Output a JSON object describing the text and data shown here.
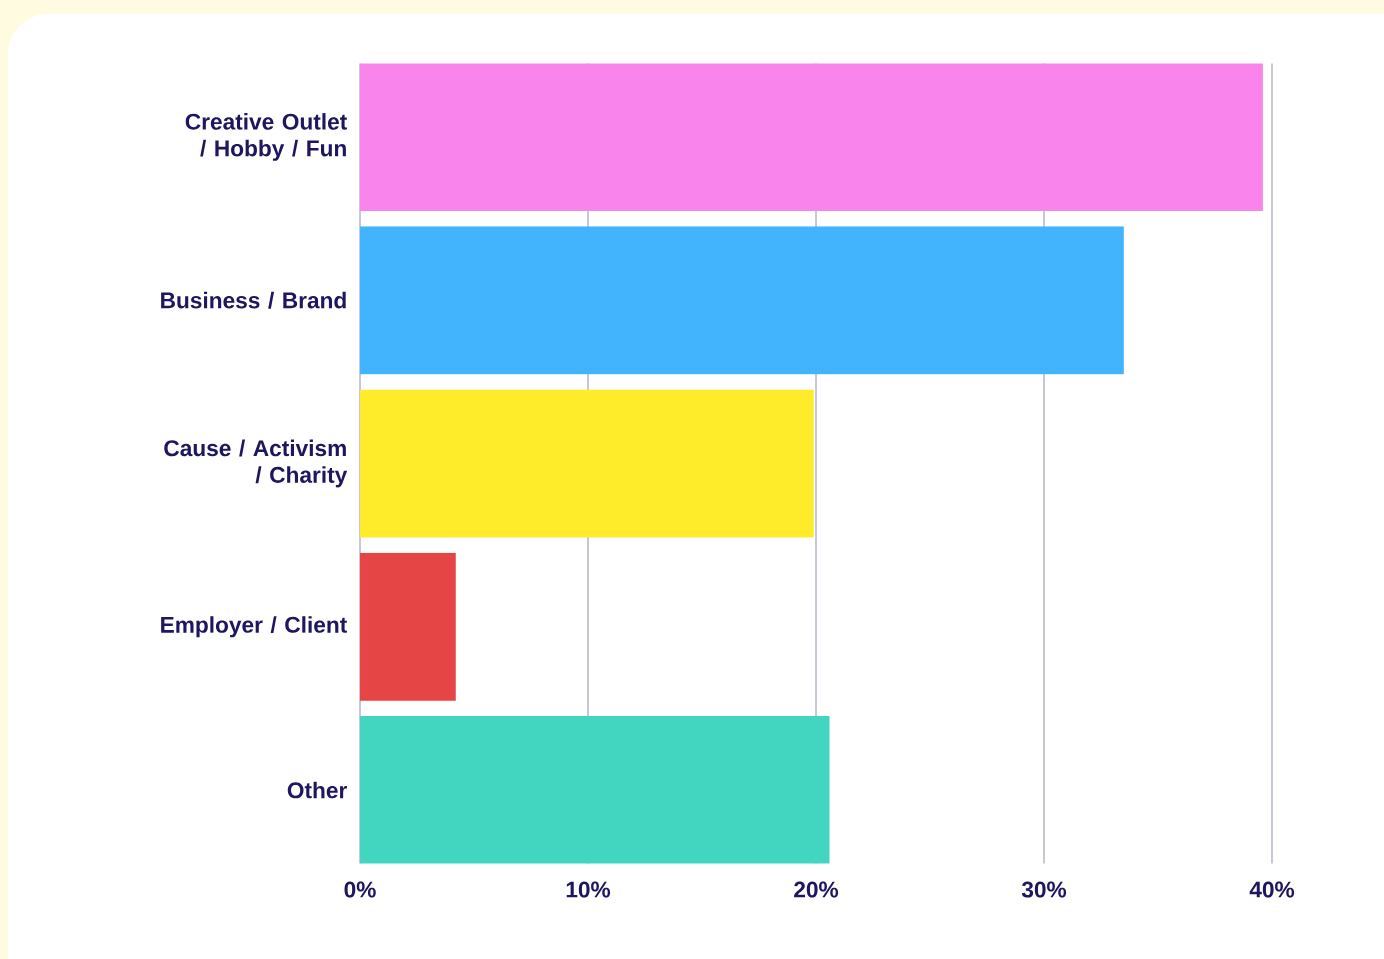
{
  "chart_data": {
    "type": "bar",
    "orientation": "horizontal",
    "categories": [
      "Creative Outlet / Hobby / Fun",
      "Business / Brand",
      "Cause / Activism / Charity",
      "Employer / Client",
      "Other"
    ],
    "values": [
      39.6,
      33.5,
      19.9,
      4.2,
      20.6
    ],
    "colors": [
      "#f984ec",
      "#42b4fe",
      "#feec2a",
      "#e54545",
      "#42d6c1"
    ],
    "xlim": [
      0,
      40
    ],
    "xticks": [
      {
        "value": 0,
        "label": "0%"
      },
      {
        "value": 10,
        "label": "10%"
      },
      {
        "value": 20,
        "label": "20%"
      },
      {
        "value": 30,
        "label": "30%"
      },
      {
        "value": 40,
        "label": "40%"
      }
    ],
    "grid": "x"
  }
}
